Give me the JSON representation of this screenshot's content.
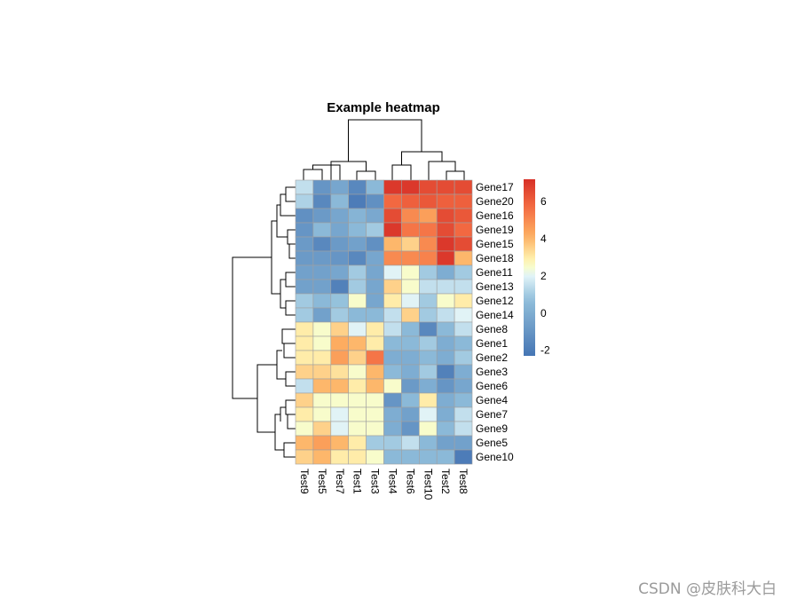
{
  "chart_data": {
    "type": "heatmap",
    "title": "Example heatmap",
    "columns": [
      "Test9",
      "Test5",
      "Test7",
      "Test1",
      "Test3",
      "Test4",
      "Test6",
      "Test10",
      "Test2",
      "Test8"
    ],
    "rows": [
      "Gene17",
      "Gene20",
      "Gene16",
      "Gene19",
      "Gene15",
      "Gene18",
      "Gene11",
      "Gene13",
      "Gene12",
      "Gene14",
      "Gene8",
      "Gene1",
      "Gene2",
      "Gene3",
      "Gene6",
      "Gene4",
      "Gene7",
      "Gene9",
      "Gene5",
      "Gene10"
    ],
    "values": [
      [
        1.5,
        -1.0,
        -0.3,
        -1.5,
        0.5,
        7.0,
        7.0,
        6.5,
        6.5,
        6.5
      ],
      [
        1.2,
        -1.5,
        0.5,
        -2.0,
        -1.2,
        5.8,
        6.0,
        6.2,
        6.0,
        6.0
      ],
      [
        -1.2,
        -0.8,
        -0.3,
        0.3,
        -0.2,
        6.5,
        5.0,
        4.5,
        6.5,
        6.2
      ],
      [
        -1.0,
        0.5,
        -0.3,
        0.5,
        1.0,
        7.0,
        5.5,
        5.5,
        6.5,
        5.8
      ],
      [
        -0.8,
        -1.5,
        -0.8,
        -0.5,
        -1.2,
        4.0,
        3.5,
        5.0,
        7.0,
        6.5
      ],
      [
        -0.8,
        -0.8,
        -1.0,
        -1.5,
        -0.3,
        5.0,
        5.0,
        5.2,
        7.0,
        4.0
      ],
      [
        -0.5,
        -0.5,
        -0.3,
        1.0,
        -0.3,
        2.0,
        2.5,
        1.0,
        0.0,
        1.0
      ],
      [
        -0.5,
        -0.5,
        -1.8,
        1.0,
        -0.3,
        3.5,
        2.5,
        1.5,
        1.5,
        1.5
      ],
      [
        1.0,
        0.5,
        0.8,
        2.5,
        -0.3,
        3.0,
        2.0,
        1.0,
        2.5,
        3.0
      ],
      [
        1.0,
        -0.5,
        1.0,
        0.5,
        0.5,
        1.5,
        3.5,
        1.0,
        1.5,
        2.0
      ],
      [
        3.0,
        2.5,
        3.5,
        2.0,
        3.0,
        1.5,
        0.5,
        -1.5,
        0.5,
        1.5
      ],
      [
        3.0,
        2.5,
        4.2,
        4.0,
        3.0,
        0.5,
        0.5,
        1.0,
        0.0,
        0.5
      ],
      [
        3.0,
        3.0,
        4.5,
        3.5,
        5.5,
        0.0,
        0.0,
        0.5,
        0.0,
        1.0
      ],
      [
        3.5,
        3.5,
        3.2,
        2.5,
        4.0,
        0.5,
        0.0,
        1.0,
        -1.8,
        0.0
      ],
      [
        1.5,
        4.0,
        4.0,
        3.0,
        4.0,
        2.5,
        -0.8,
        0.0,
        -1.0,
        -0.3
      ],
      [
        3.5,
        2.5,
        2.5,
        2.5,
        2.5,
        -1.0,
        0.5,
        3.0,
        0.0,
        0.5
      ],
      [
        3.0,
        2.5,
        2.0,
        2.5,
        2.5,
        0.0,
        -0.5,
        2.0,
        0.0,
        1.5
      ],
      [
        2.5,
        3.5,
        2.0,
        2.5,
        2.5,
        0.0,
        -1.0,
        2.5,
        0.5,
        1.5
      ],
      [
        4.0,
        4.5,
        4.0,
        3.0,
        1.0,
        1.0,
        1.5,
        0.5,
        -0.5,
        -0.5
      ],
      [
        3.5,
        4.0,
        3.0,
        3.0,
        2.5,
        0.5,
        0.5,
        0.5,
        0.5,
        -2.0
      ]
    ],
    "legend": {
      "ticks": [
        6,
        4,
        2,
        0,
        -2
      ],
      "min": -2.3,
      "max": 7.2
    },
    "colors": {
      "low": "#4575b4",
      "mid_low": "#e0f3f8",
      "mid": "#ffffbf",
      "mid_high": "#fdae61",
      "high": "#d73027",
      "cell_border": "#a0a0a0",
      "line": "#000000"
    }
  },
  "watermark": "CSDN @皮肤科大白"
}
